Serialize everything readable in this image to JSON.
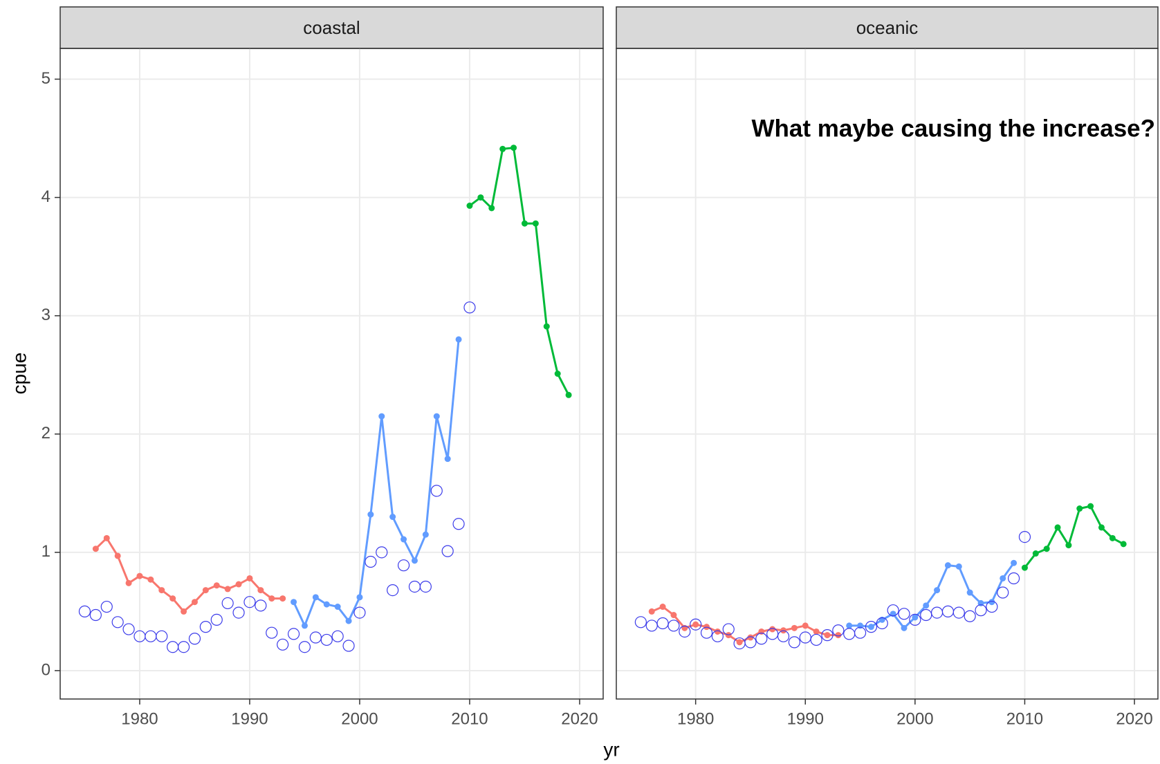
{
  "chart_data": {
    "type": "line",
    "ylabel": "cpue",
    "xlabel": "yr",
    "annotation": "What maybe causing the increase?",
    "xlim": [
      1972.77,
      2022.14
    ],
    "xticks": [
      1980,
      1990,
      2000,
      2010,
      2020
    ],
    "ylim": [
      -0.24,
      5.26
    ],
    "yticks": [
      0,
      1,
      2,
      3,
      4,
      5
    ],
    "grid": true,
    "panels": [
      {
        "title": "coastal",
        "series": [
          {
            "mode": "lines+markers",
            "color": "#F8766D",
            "x": [
              1976,
              1977,
              1978,
              1979,
              1980,
              1981,
              1982,
              1983,
              1984,
              1985,
              1986,
              1987,
              1988,
              1989,
              1990,
              1991,
              1992,
              1993
            ],
            "values": [
              1.03,
              1.12,
              0.97,
              0.74,
              0.8,
              0.77,
              0.68,
              0.61,
              0.5,
              0.58,
              0.68,
              0.72,
              0.69,
              0.73,
              0.78,
              0.68,
              0.61,
              0.61
            ]
          },
          {
            "mode": "lines+markers",
            "color": "#619CFF",
            "x": [
              1994,
              1995,
              1996,
              1997,
              1998,
              1999,
              2000,
              2001,
              2002,
              2003,
              2004,
              2005,
              2006,
              2007,
              2008,
              2009
            ],
            "values": [
              0.58,
              0.38,
              0.62,
              0.56,
              0.54,
              0.42,
              0.62,
              1.32,
              2.15,
              1.3,
              1.11,
              0.93,
              1.15,
              2.15,
              1.79,
              2.8
            ]
          },
          {
            "mode": "lines+markers",
            "color": "#00BA38",
            "x": [
              2010,
              2011,
              2012,
              2013,
              2014,
              2015,
              2016,
              2017,
              2018,
              2019
            ],
            "values": [
              3.93,
              4.0,
              3.91,
              4.41,
              4.42,
              3.78,
              3.78,
              2.91,
              2.51,
              2.33
            ]
          },
          {
            "mode": "open-markers",
            "color": "#3b3bea",
            "x": [
              1975,
              1976,
              1977,
              1978,
              1979,
              1980,
              1981,
              1982,
              1983,
              1984,
              1985,
              1986,
              1987,
              1988,
              1989,
              1990,
              1991,
              1992,
              1993,
              1994,
              1995,
              1996,
              1997,
              1998,
              1999,
              2000,
              2001,
              2002,
              2003,
              2004,
              2005,
              2006,
              2007,
              2008,
              2009,
              2010
            ],
            "values": [
              0.5,
              0.47,
              0.54,
              0.41,
              0.35,
              0.29,
              0.29,
              0.29,
              0.2,
              0.2,
              0.27,
              0.37,
              0.43,
              0.57,
              0.49,
              0.58,
              0.55,
              0.32,
              0.22,
              0.31,
              0.2,
              0.28,
              0.26,
              0.29,
              0.21,
              0.49,
              0.92,
              1.0,
              0.68,
              0.89,
              0.71,
              0.71,
              1.52,
              1.01,
              1.24,
              3.07
            ]
          }
        ]
      },
      {
        "title": "oceanic",
        "series": [
          {
            "mode": "lines+markers",
            "color": "#F8766D",
            "x": [
              1976,
              1977,
              1978,
              1979,
              1980,
              1981,
              1982,
              1983,
              1984,
              1985,
              1986,
              1987,
              1988,
              1989,
              1990,
              1991,
              1992,
              1993
            ],
            "values": [
              0.5,
              0.54,
              0.47,
              0.36,
              0.39,
              0.37,
              0.33,
              0.3,
              0.24,
              0.28,
              0.33,
              0.35,
              0.34,
              0.36,
              0.38,
              0.33,
              0.3,
              0.3
            ]
          },
          {
            "mode": "lines+markers",
            "color": "#619CFF",
            "x": [
              1994,
              1995,
              1996,
              1997,
              1998,
              1999,
              2000,
              2001,
              2002,
              2003,
              2004,
              2005,
              2006,
              2007,
              2008,
              2009
            ],
            "values": [
              0.38,
              0.38,
              0.37,
              0.43,
              0.48,
              0.36,
              0.45,
              0.55,
              0.68,
              0.89,
              0.88,
              0.66,
              0.57,
              0.58,
              0.78,
              0.91
            ]
          },
          {
            "mode": "lines+markers",
            "color": "#00BA38",
            "x": [
              2010,
              2011,
              2012,
              2013,
              2014,
              2015,
              2016,
              2017,
              2018,
              2019
            ],
            "values": [
              0.87,
              0.99,
              1.03,
              1.21,
              1.06,
              1.37,
              1.39,
              1.21,
              1.12,
              1.07
            ]
          },
          {
            "mode": "open-markers",
            "color": "#3b3bea",
            "x": [
              1975,
              1976,
              1977,
              1978,
              1979,
              1980,
              1981,
              1982,
              1983,
              1984,
              1985,
              1986,
              1987,
              1988,
              1989,
              1990,
              1991,
              1992,
              1993,
              1994,
              1995,
              1996,
              1997,
              1998,
              1999,
              2000,
              2001,
              2002,
              2003,
              2004,
              2005,
              2006,
              2007,
              2008,
              2009,
              2010
            ],
            "values": [
              0.41,
              0.38,
              0.4,
              0.38,
              0.33,
              0.39,
              0.32,
              0.29,
              0.35,
              0.23,
              0.24,
              0.27,
              0.31,
              0.29,
              0.24,
              0.28,
              0.26,
              0.3,
              0.34,
              0.31,
              0.32,
              0.37,
              0.4,
              0.51,
              0.48,
              0.43,
              0.47,
              0.49,
              0.5,
              0.49,
              0.46,
              0.51,
              0.54,
              0.66,
              0.78,
              1.13
            ]
          }
        ]
      }
    ]
  }
}
